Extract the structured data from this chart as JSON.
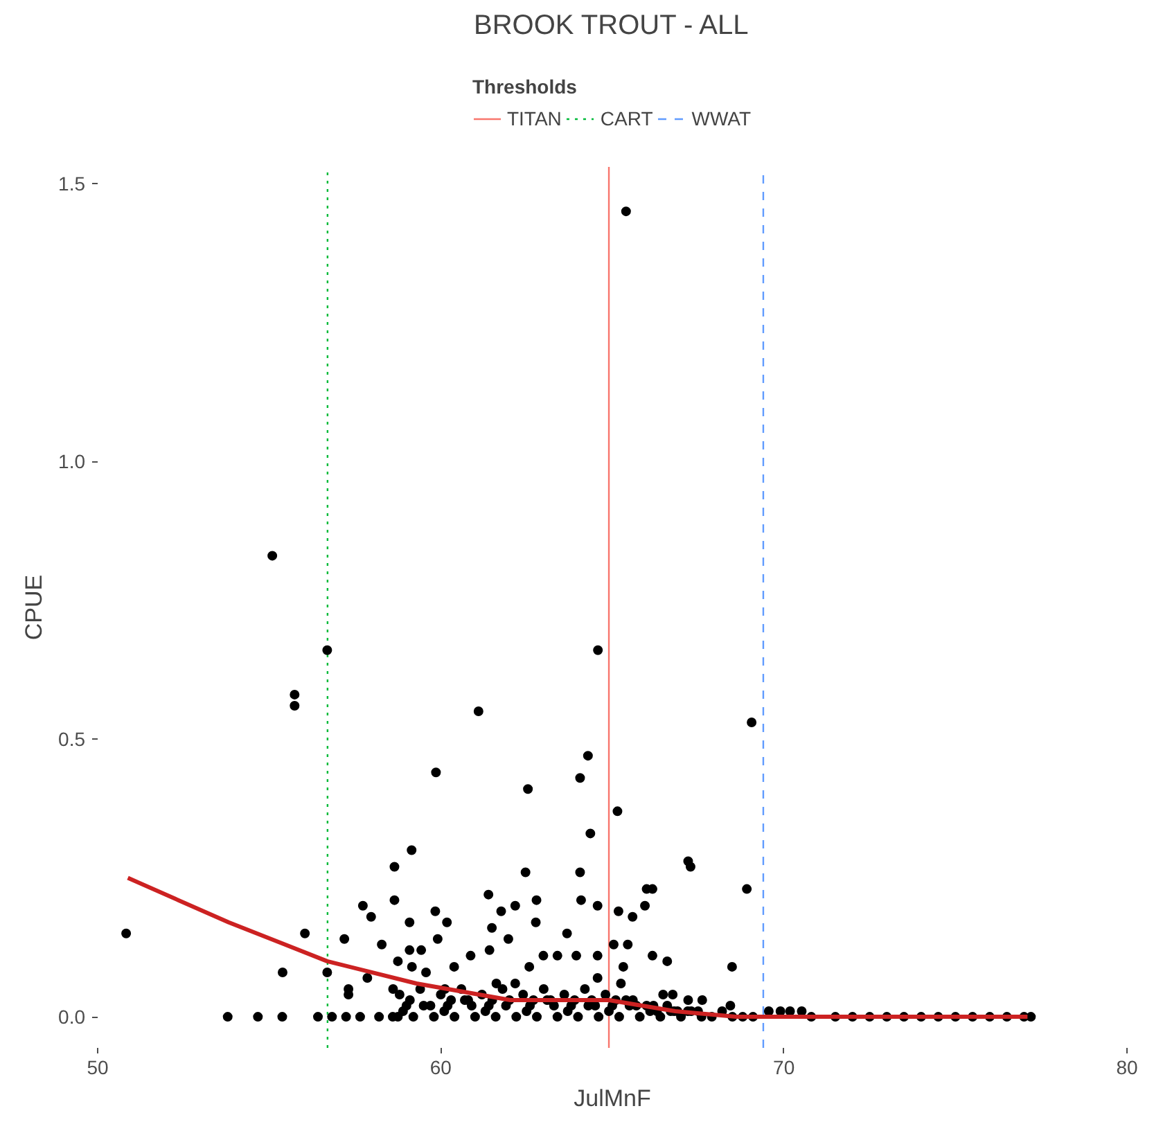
{
  "chart_data": {
    "type": "scatter",
    "title": "BROOK TROUT - ALL",
    "xlabel": "JulMnF",
    "ylabel": "CPUE",
    "legend_title": "Thresholds",
    "legend": "top",
    "grid": false,
    "xlim": [
      50,
      80
    ],
    "xticks": [
      50,
      60,
      70,
      80
    ],
    "ylim": [
      -0.056,
      1.53
    ],
    "yticks": [
      {
        "value": 0,
        "label": "0.0"
      },
      {
        "value": 0.5,
        "label": "0.5"
      },
      {
        "value": 1,
        "label": "1.0"
      },
      {
        "value": 1.5,
        "label": "1.5"
      }
    ],
    "series": [
      {
        "color": "#000000",
        "marker": "circle",
        "x": [
          55.09,
          56.69,
          55.74,
          55.74,
          64.58,
          61.1,
          59.86,
          62.54,
          64.29,
          64.06,
          65.15,
          64.36,
          59.15,
          58.65,
          62.47,
          64.06,
          50.83,
          58.65,
          57.73,
          57.97,
          61.39,
          62.79,
          66.0,
          65.95,
          56.04,
          57.19,
          58.28,
          59.09,
          59.84,
          60.18,
          59.91,
          61.76,
          62.17,
          62.77,
          63.68,
          64.09,
          64.57,
          65.18,
          65.59,
          65.45,
          65.04,
          61.49,
          61.97,
          63.4,
          63.95,
          61.42,
          59.09,
          59.43,
          58.75,
          60.39,
          60.87,
          62.58,
          62.99,
          64.57,
          65.32,
          55.39,
          56.69,
          57.31,
          57.31,
          57.86,
          59.16,
          59.57,
          58.61,
          61.62,
          62.17,
          64.57,
          65.25,
          60.12,
          53.79,
          54.67,
          55.38,
          56.42,
          56.83,
          57.24,
          57.65,
          58.2,
          58.75,
          69.06,
          67.21,
          67.28,
          66.17,
          68.92,
          66.17,
          66.6,
          68.49,
          66.48,
          66.76,
          67.21,
          67.62,
          68.44,
          69.56,
          69.9,
          70.18,
          70.52,
          77.2,
          65.4,
          58.6,
          58.9,
          59.2,
          59.5,
          59.8,
          60.1,
          60.4,
          60.7,
          61.0,
          61.3,
          61.6,
          61.9,
          62.2,
          62.5,
          62.8,
          63.1,
          63.4,
          63.7,
          64.0,
          64.3,
          64.6,
          64.9,
          65.2,
          65.5,
          65.8,
          66.1,
          66.4,
          66.7,
          67.0,
          67.3,
          67.6,
          67.9,
          68.2,
          68.5,
          68.8,
          69.1,
          58.8,
          59.1,
          59.4,
          59.7,
          60.0,
          60.3,
          60.6,
          60.9,
          61.2,
          61.5,
          61.8,
          62.4,
          62.7,
          63.0,
          63.3,
          63.6,
          63.9,
          64.2,
          64.5,
          64.8,
          65.1,
          65.4,
          65.7,
          66.0,
          66.3,
          66.6,
          66.9,
          67.2,
          67.5,
          59.0,
          60.2,
          60.8,
          61.4,
          62.0,
          62.6,
          63.2,
          63.8,
          64.4,
          65.0,
          65.6,
          66.2,
          66.8,
          70.8,
          71.5,
          72.0,
          72.5,
          73.0,
          73.5,
          74.0,
          74.5,
          75.0,
          75.5,
          76.0,
          76.5,
          77.0
        ],
        "values": [
          0.83,
          0.66,
          0.58,
          0.56,
          0.66,
          0.55,
          0.44,
          0.41,
          0.47,
          0.43,
          0.37,
          0.33,
          0.3,
          0.27,
          0.26,
          0.26,
          0.15,
          0.21,
          0.2,
          0.18,
          0.22,
          0.21,
          0.23,
          0.2,
          0.15,
          0.14,
          0.13,
          0.17,
          0.19,
          0.17,
          0.14,
          0.19,
          0.2,
          0.17,
          0.15,
          0.21,
          0.2,
          0.19,
          0.18,
          0.13,
          0.13,
          0.16,
          0.14,
          0.11,
          0.11,
          0.12,
          0.12,
          0.12,
          0.1,
          0.09,
          0.11,
          0.09,
          0.11,
          0.11,
          0.09,
          0.08,
          0.08,
          0.05,
          0.04,
          0.07,
          0.09,
          0.08,
          0.05,
          0.06,
          0.06,
          0.07,
          0.06,
          0.05,
          0,
          0,
          0,
          0,
          0,
          0,
          0,
          0,
          0,
          0.53,
          0.28,
          0.27,
          0.23,
          0.23,
          0.11,
          0.1,
          0.09,
          0.04,
          0.04,
          0.03,
          0.03,
          0.02,
          0.01,
          0.01,
          0.01,
          0.01,
          0,
          1.45,
          0,
          0.01,
          0,
          0.02,
          0,
          0.01,
          0,
          0.03,
          0,
          0.01,
          0,
          0.02,
          0,
          0.01,
          0,
          0.03,
          0,
          0.01,
          0,
          0.02,
          0,
          0.01,
          0,
          0.02,
          0,
          0.01,
          0,
          0.01,
          0,
          0.01,
          0,
          0,
          0.01,
          0,
          0,
          0,
          0.04,
          0.03,
          0.05,
          0.02,
          0.04,
          0.03,
          0.05,
          0.02,
          0.04,
          0.03,
          0.05,
          0.04,
          0.03,
          0.05,
          0.02,
          0.04,
          0.03,
          0.05,
          0.02,
          0.04,
          0.03,
          0.03,
          0.02,
          0.02,
          0.01,
          0.02,
          0.01,
          0.01,
          0.01,
          0.02,
          0.02,
          0.03,
          0.02,
          0.03,
          0.02,
          0.03,
          0.02,
          0.03,
          0.02,
          0.03,
          0.02,
          0.01,
          0,
          0,
          0,
          0,
          0,
          0,
          0,
          0,
          0,
          0,
          0,
          0,
          0
        ]
      },
      {
        "type": "line",
        "color": "#cc2222",
        "x": [
          50.88,
          53.82,
          55.46,
          56.69,
          59.29,
          62.03,
          64.9,
          66.83,
          68.6,
          70.9,
          77.1
        ],
        "values": [
          0.25,
          0.17,
          0.13,
          0.1,
          0.06,
          0.03,
          0.03,
          0.01,
          0,
          0,
          0
        ]
      }
    ],
    "ref_lines": [
      {
        "axis": "x",
        "value": 64.9,
        "label": "TITAN",
        "color": "#f8766d",
        "line_style": "solid"
      },
      {
        "axis": "x",
        "value": 56.7,
        "label": "CART",
        "color": "#00ba38",
        "line_style": "dotted"
      },
      {
        "axis": "x",
        "value": 69.4,
        "label": "WWAT",
        "color": "#619cff",
        "line_style": "dashed"
      }
    ]
  }
}
